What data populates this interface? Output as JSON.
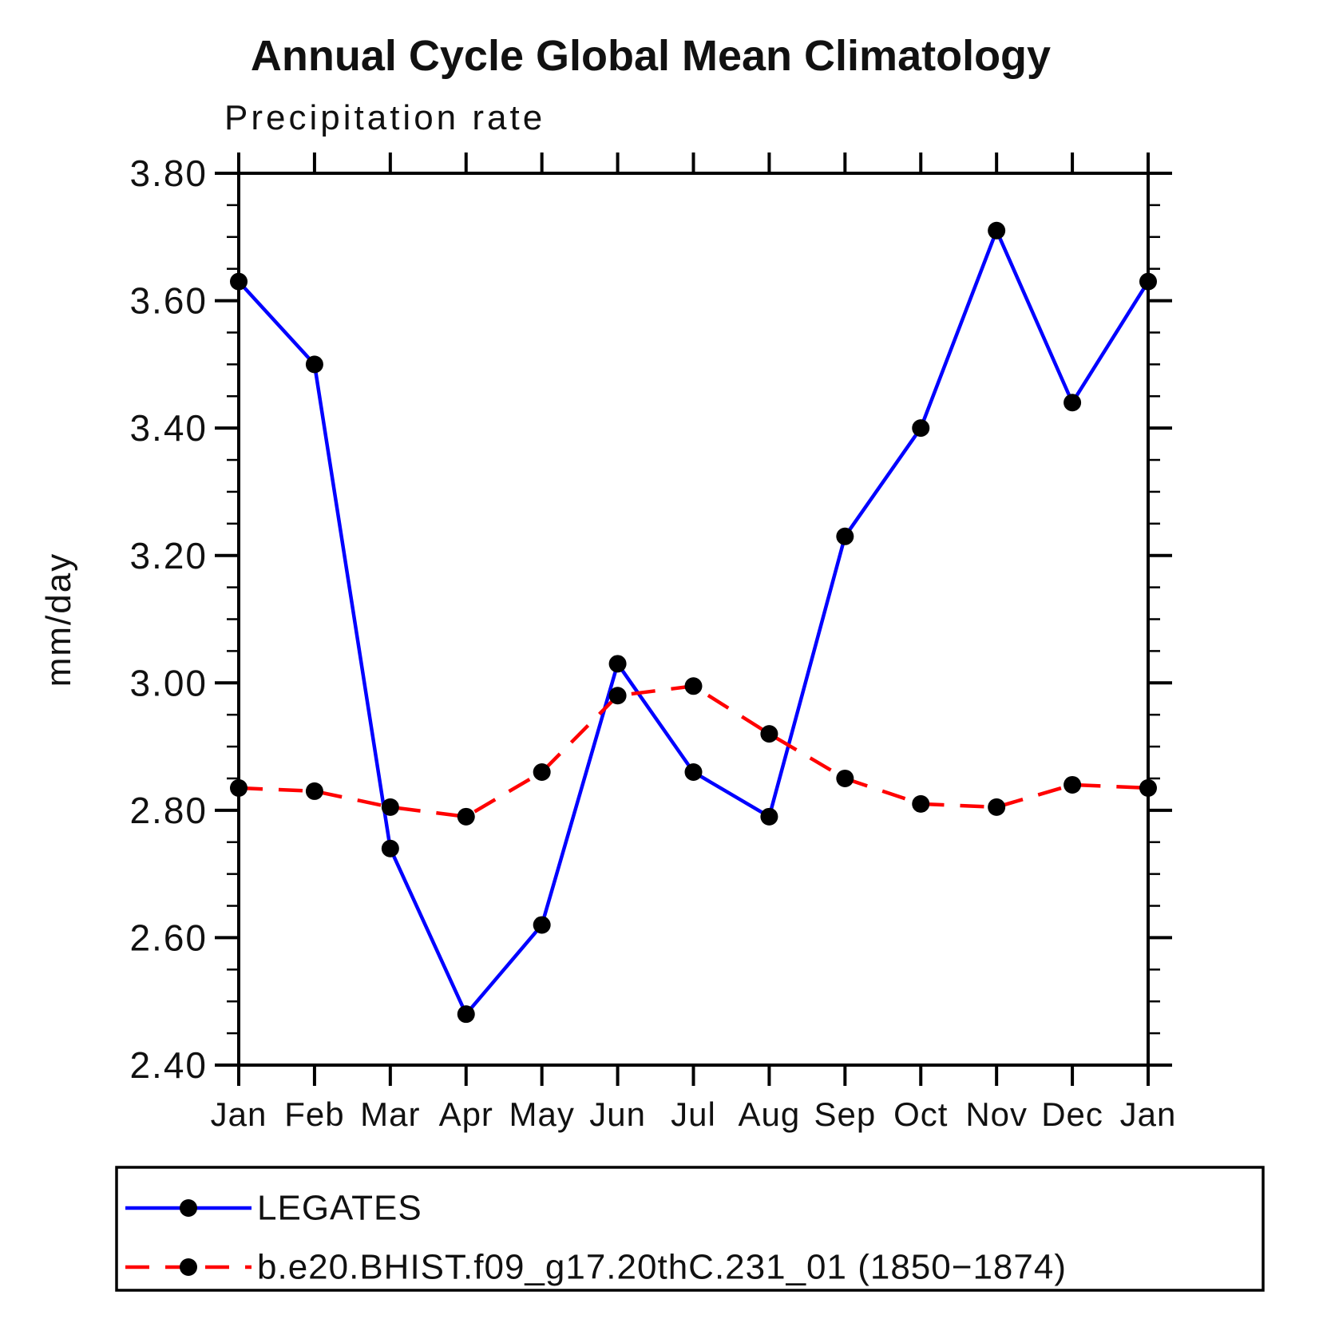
{
  "title": "Annual Cycle Global Mean Climatology",
  "subtitle": "Precipitation rate",
  "ylabel": "mm/day",
  "colors": {
    "obs_line": "#0000ff",
    "model_line": "#ff0000",
    "marker": "#000000",
    "axis": "#000000",
    "background": "#ffffff"
  },
  "chart_data": {
    "type": "line",
    "categories": [
      "Jan",
      "Feb",
      "Mar",
      "Apr",
      "May",
      "Jun",
      "Jul",
      "Aug",
      "Sep",
      "Oct",
      "Nov",
      "Dec",
      "Jan"
    ],
    "series": [
      {
        "name": "LEGATES",
        "color": "#0000ff",
        "line_style": "solid",
        "marker": "filled-black-circle",
        "values": [
          3.63,
          3.5,
          2.74,
          2.48,
          2.62,
          3.03,
          2.86,
          2.79,
          3.23,
          3.4,
          3.71,
          3.44,
          3.63
        ]
      },
      {
        "name": "b.e20.BHIST.f09_g17.20thC.231_01 (1850−1874)",
        "color": "#ff0000",
        "line_style": "dashed",
        "marker": "filled-black-circle",
        "values": [
          2.835,
          2.83,
          2.805,
          2.79,
          2.86,
          2.98,
          2.995,
          2.92,
          2.85,
          2.81,
          2.805,
          2.84,
          2.835
        ]
      }
    ],
    "ylim": [
      2.4,
      3.8
    ],
    "ytick_major": 0.2,
    "ytick_minor": 0.05,
    "ytick_label_format": "0.00",
    "grid": false,
    "tick_direction": "out",
    "legend_position": "bottom-left-box"
  }
}
